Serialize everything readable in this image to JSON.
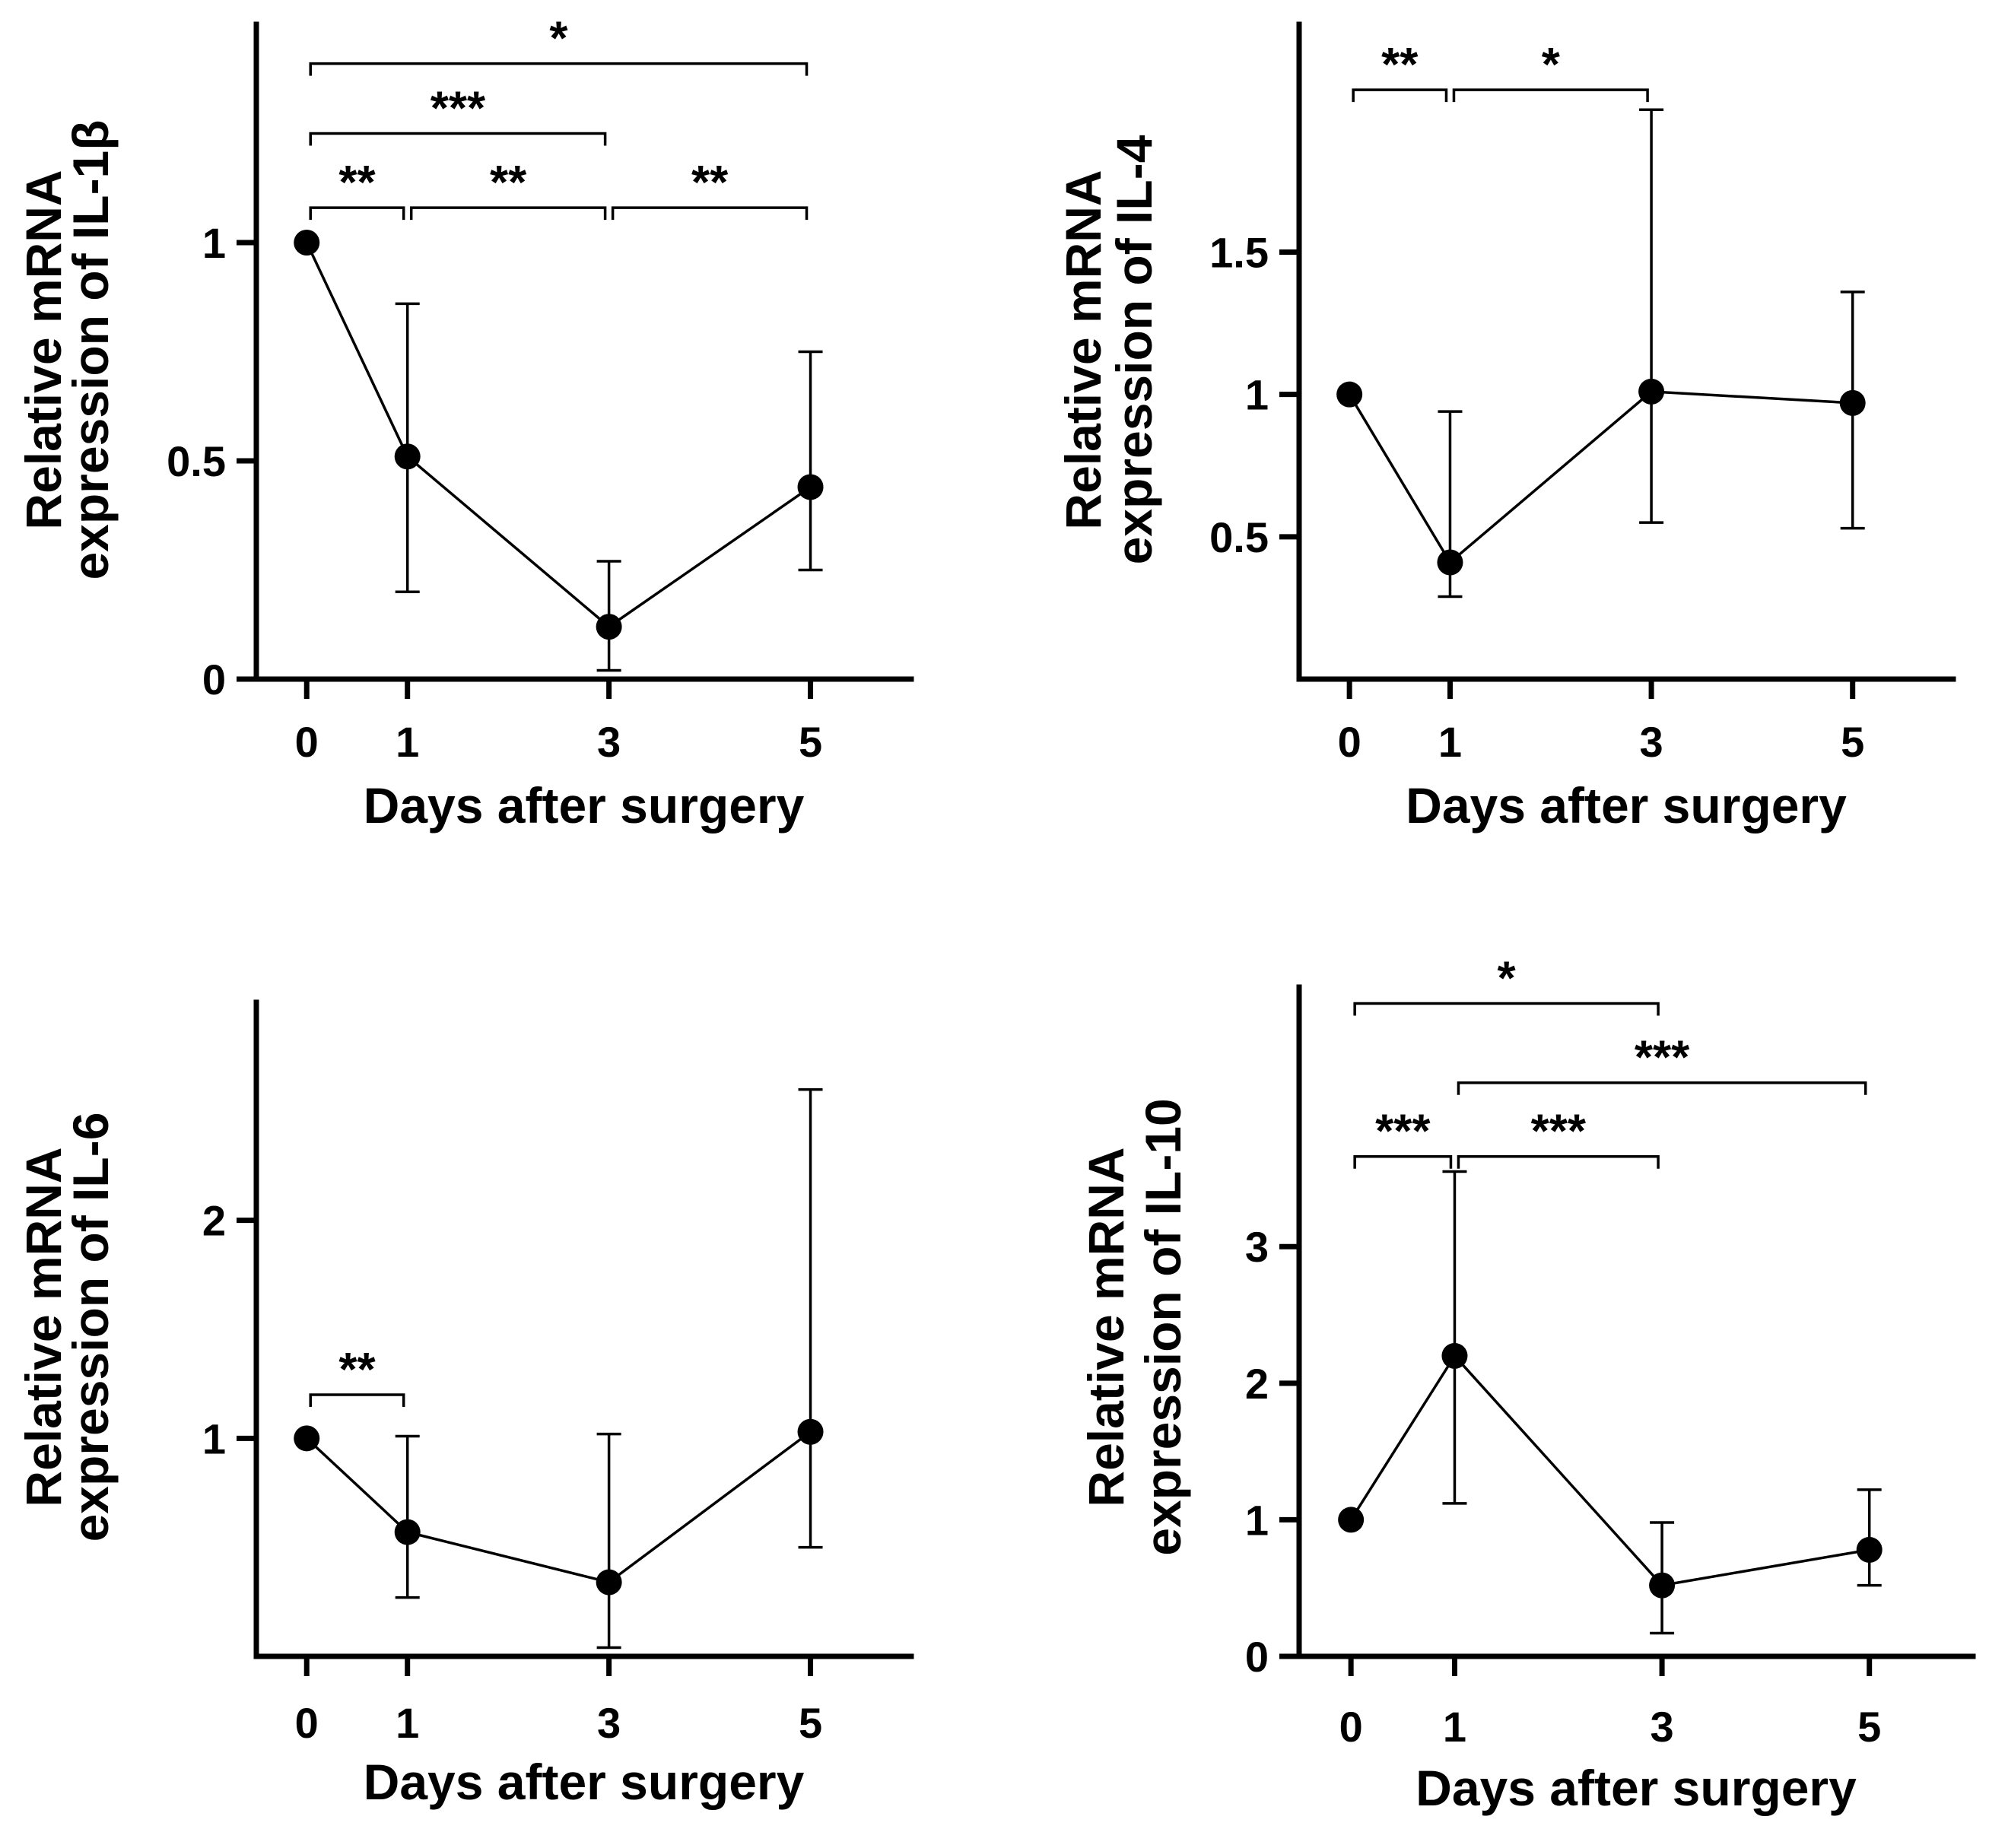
{
  "chart_data": [
    {
      "type": "line",
      "panel": "top-left",
      "xlabel": "Days after surgery",
      "ylabel": [
        "Relative mRNA",
        "expression of IL-1β"
      ],
      "x": [
        0,
        1,
        3,
        5
      ],
      "x_ticks": [
        "0",
        "1",
        "3",
        "5"
      ],
      "y_ticks": [
        "0",
        "0.5",
        "1"
      ],
      "y_tick_values": [
        0,
        0.5,
        1
      ],
      "ylim": [
        0,
        1.5
      ],
      "xlim": [
        -0.5,
        6
      ],
      "values": [
        1.0,
        0.51,
        0.12,
        0.44
      ],
      "err_lower": [
        1.0,
        0.2,
        0.02,
        0.25
      ],
      "err_upper": [
        1.0,
        0.86,
        0.27,
        0.75
      ],
      "significance": [
        {
          "from": 0,
          "to": 1,
          "label": "**",
          "y": 1.08
        },
        {
          "from": 1,
          "to": 3,
          "label": "**",
          "y": 1.08
        },
        {
          "from": 3,
          "to": 5,
          "label": "**",
          "y": 1.08
        },
        {
          "from": 0,
          "to": 3,
          "label": "***",
          "y": 1.25
        },
        {
          "from": 0,
          "to": 5,
          "label": "*",
          "y": 1.41
        }
      ]
    },
    {
      "type": "line",
      "panel": "top-right",
      "xlabel": "Days after surgery",
      "ylabel": [
        "Relative mRNA",
        "expression of IL-4"
      ],
      "x": [
        0,
        1,
        3,
        5
      ],
      "x_ticks": [
        "0",
        "1",
        "3",
        "5"
      ],
      "y_ticks": [
        "0.5",
        "1",
        "1.5"
      ],
      "y_tick_values": [
        0.5,
        1,
        1.5
      ],
      "ylim": [
        0,
        2.3
      ],
      "xlim": [
        -0.5,
        6
      ],
      "values": [
        1.0,
        0.41,
        1.01,
        0.97
      ],
      "err_lower": [
        1.0,
        0.29,
        0.55,
        0.53
      ],
      "err_upper": [
        1.0,
        0.94,
        2.0,
        1.36
      ],
      "significance": [
        {
          "from": 0,
          "to": 1,
          "label": "**",
          "y": 2.07
        },
        {
          "from": 1,
          "to": 3,
          "label": "*",
          "y": 2.07
        }
      ]
    },
    {
      "type": "line",
      "panel": "bottom-left",
      "xlabel": "Days after surgery",
      "ylabel": [
        "Relative mRNA",
        "expression of IL-6"
      ],
      "x": [
        0,
        1,
        3,
        5
      ],
      "x_ticks": [
        "0",
        "1",
        "3",
        "5"
      ],
      "y_ticks": [
        "1",
        "2"
      ],
      "y_tick_values": [
        1,
        2
      ],
      "ylim": [
        0,
        3.0
      ],
      "xlim": [
        -0.5,
        6
      ],
      "values": [
        1.0,
        0.57,
        0.34,
        1.03
      ],
      "err_lower": [
        1.0,
        0.27,
        0.04,
        0.5
      ],
      "err_upper": [
        1.0,
        1.01,
        1.02,
        2.6
      ],
      "significance": [
        {
          "from": 0,
          "to": 1,
          "label": "**",
          "y": 1.2
        }
      ]
    },
    {
      "type": "line",
      "panel": "bottom-right",
      "xlabel": "Days after surgery",
      "ylabel": [
        "Relative mRNA",
        "expression of IL-10"
      ],
      "x": [
        0,
        1,
        3,
        5
      ],
      "x_ticks": [
        "0",
        "1",
        "3",
        "5"
      ],
      "y_ticks": [
        "0",
        "1",
        "2",
        "3"
      ],
      "y_tick_values": [
        0,
        1,
        2,
        3
      ],
      "ylim": [
        0,
        4.9
      ],
      "xlim": [
        -0.5,
        6
      ],
      "values": [
        1.0,
        2.2,
        0.52,
        0.78
      ],
      "err_lower": [
        1.0,
        1.12,
        0.17,
        0.52
      ],
      "err_upper": [
        1.0,
        3.55,
        0.98,
        1.22
      ],
      "significance": [
        {
          "from": 0,
          "to": 1,
          "label": "***",
          "y": 3.66
        },
        {
          "from": 1,
          "to": 3,
          "label": "***",
          "y": 3.66
        },
        {
          "from": 1,
          "to": 5,
          "label": "***",
          "y": 4.2
        },
        {
          "from": 0,
          "to": 3,
          "label": "*",
          "y": 4.78
        }
      ]
    }
  ]
}
